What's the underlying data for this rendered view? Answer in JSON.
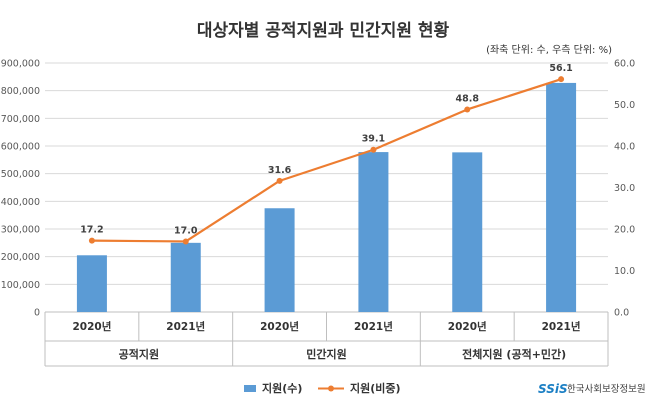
{
  "chart_data": {
    "type": "bar+line",
    "title": "대상자별 공적지원과 민간지원 현황",
    "unit_note": "(좌축 단위: 수, 우측 단위: %)",
    "categories": [
      "2020년",
      "2021년",
      "2020년",
      "2021년",
      "2020년",
      "2021년"
    ],
    "groups": [
      {
        "label": "공적지원",
        "span": [
          0,
          1
        ]
      },
      {
        "label": "민간지원",
        "span": [
          2,
          3
        ]
      },
      {
        "label": "전체지원 (공적+민간)",
        "span": [
          4,
          5
        ]
      }
    ],
    "series": [
      {
        "name": "지원(수)",
        "type": "bar",
        "axis": "left",
        "color": "#5B9BD5",
        "values": [
          205000,
          250000,
          375000,
          578000,
          577000,
          828000
        ]
      },
      {
        "name": "지원(비중)",
        "type": "line",
        "axis": "right",
        "color": "#ED7D31",
        "values": [
          17.2,
          17.0,
          31.6,
          39.1,
          48.8,
          56.1
        ],
        "labels": [
          "17.2",
          "17.0",
          "31.6",
          "39.1",
          "48.8",
          "56.1"
        ]
      }
    ],
    "y_left": {
      "min": 0,
      "max": 900000,
      "step": 100000,
      "tick_labels": [
        "0",
        "100,000",
        "200,000",
        "300,000",
        "400,000",
        "500,000",
        "600,000",
        "700,000",
        "800,000",
        "900,000"
      ]
    },
    "y_right": {
      "min": 0,
      "max": 60,
      "step": 10,
      "tick_labels": [
        "0.0",
        "10.0",
        "20.0",
        "30.0",
        "40.0",
        "50.0",
        "60.0"
      ]
    },
    "grid": "horizontal",
    "legend_position": "bottom-center"
  },
  "branding": {
    "logo_text": "SSiS",
    "org_name": "한국사회보장정보원",
    "logo_color": "#1B7FC4"
  }
}
